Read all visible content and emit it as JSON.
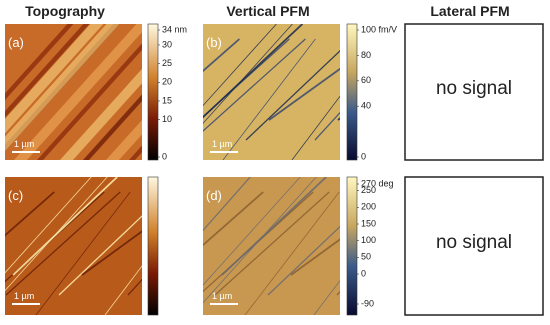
{
  "columns": [
    "Topography",
    "Vertical PFM",
    "Lateral PFM"
  ],
  "panels": [
    {
      "label": "(a)",
      "scale_bar": "1 µm"
    },
    {
      "label": "(b)",
      "scale_bar": "1 µm"
    },
    {
      "label": "(c)",
      "scale_bar": "1 µm"
    },
    {
      "label": "(d)",
      "scale_bar": "1 µm"
    }
  ],
  "no_signal": [
    "no signal",
    "no signal"
  ],
  "colorbars": [
    {
      "ticks": [
        {
          "value": 34,
          "label": "34 nm"
        },
        30,
        25,
        20,
        15,
        10,
        0
      ]
    },
    {
      "ticks": [
        {
          "value": 100,
          "label": "100 fm/V"
        },
        80,
        60,
        40,
        0
      ]
    },
    {
      "ticks": [
        {
          "value": 270,
          "label": "270 deg"
        },
        250,
        200,
        150,
        100,
        50,
        0,
        -90
      ]
    }
  ]
}
